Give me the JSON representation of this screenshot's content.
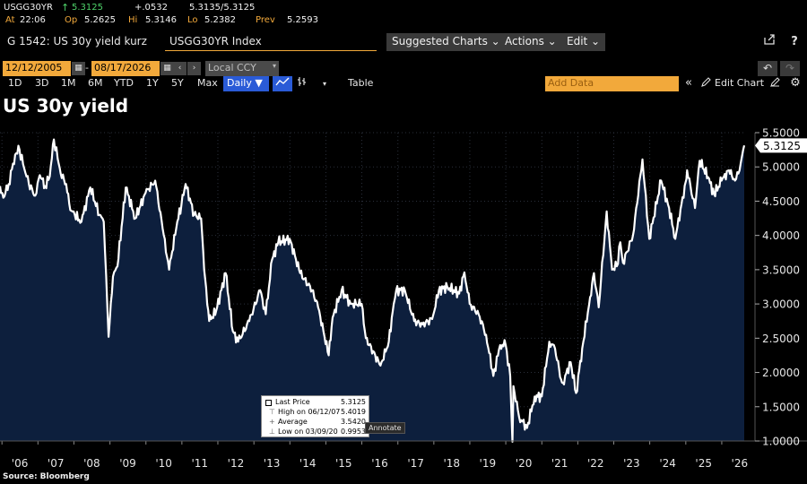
{
  "quote": {
    "ticker": "USGG30YR",
    "arrow": "↑",
    "last": "5.3125",
    "change": "+.0532",
    "bid_ask": "5.3135/5.3125",
    "at_label": "At",
    "at_time": "22:06",
    "op_label": "Op",
    "op_value": "5.2625",
    "hi_label": "Hi",
    "hi_value": "5.3146",
    "lo_label": "Lo",
    "lo_value": "5.2382",
    "prev_label": "Prev",
    "prev_value": "5.2593"
  },
  "titlebar": {
    "title": "G 1542: US 30y yield kurz",
    "security": "USGG30YR Index",
    "suggested": "Suggested Charts ⌄",
    "actions": "Actions ⌄",
    "edit": "Edit ⌄",
    "share_icon": "share-icon",
    "help_icon": "help-icon"
  },
  "daterow": {
    "start": "12/12/2005",
    "end": "08/17/2026",
    "ccy": "Local CCY",
    "calendar_icon": "calendar-icon"
  },
  "periods": [
    "1D",
    "3D",
    "1M",
    "6M",
    "YTD",
    "1Y",
    "5Y",
    "Max"
  ],
  "toolbar": {
    "frequency": "Daily ▼",
    "table": "Table",
    "add_data": "Add Data",
    "edit_chart": "Edit Chart"
  },
  "colors": {
    "background": "#000000",
    "area_fill": "#0d1f3d",
    "line": "#ffffff",
    "amber": "#f2a93b",
    "active_blue": "#2a5bd7"
  },
  "chart_data": {
    "type": "area",
    "title": "US 30y yield",
    "source": "Source: Bloomberg",
    "x_labels": [
      "'06",
      "'07",
      "'08",
      "'09",
      "'10",
      "'11",
      "'12",
      "'13",
      "'14",
      "'15",
      "'16",
      "'17",
      "'18",
      "'19",
      "'20",
      "'21",
      "'22",
      "'23",
      "'24",
      "'25",
      "'26"
    ],
    "y_ticks": [
      "1.0000",
      "1.5000",
      "2.0000",
      "2.5000",
      "3.0000",
      "3.5000",
      "4.0000",
      "4.5000",
      "5.0000",
      "5.5000"
    ],
    "ylim": [
      1.0,
      5.5
    ],
    "x_range": [
      "2005-12-12",
      "2026-08-17"
    ],
    "grid": true,
    "last_value_label": "5.3125",
    "series": [
      {
        "values": [
          [
            "2005-12-12",
            4.72
          ],
          [
            "2006-01-15",
            4.55
          ],
          [
            "2006-03-10",
            4.75
          ],
          [
            "2006-05-15",
            5.18
          ],
          [
            "2006-06-28",
            5.25
          ],
          [
            "2006-08-15",
            4.98
          ],
          [
            "2006-10-01",
            4.75
          ],
          [
            "2006-12-05",
            4.58
          ],
          [
            "2007-01-20",
            4.88
          ],
          [
            "2007-03-15",
            4.72
          ],
          [
            "2007-05-01",
            4.86
          ],
          [
            "2007-06-12",
            5.4
          ],
          [
            "2007-07-20",
            5.12
          ],
          [
            "2007-08-20",
            4.9
          ],
          [
            "2007-10-15",
            4.75
          ],
          [
            "2007-11-25",
            4.37
          ],
          [
            "2008-01-10",
            4.3
          ],
          [
            "2008-03-17",
            4.2
          ],
          [
            "2008-06-15",
            4.7
          ],
          [
            "2008-09-15",
            4.3
          ],
          [
            "2008-10-30",
            4.2
          ],
          [
            "2008-12-18",
            2.52
          ],
          [
            "2009-02-01",
            3.4
          ],
          [
            "2009-03-18",
            3.55
          ],
          [
            "2009-06-10",
            4.7
          ],
          [
            "2009-09-15",
            4.25
          ],
          [
            "2009-12-28",
            4.62
          ],
          [
            "2010-04-05",
            4.8
          ],
          [
            "2010-06-20",
            4.1
          ],
          [
            "2010-08-24",
            3.5
          ],
          [
            "2010-11-15",
            4.2
          ],
          [
            "2010-12-28",
            4.45
          ],
          [
            "2011-02-08",
            4.75
          ],
          [
            "2011-05-05",
            4.3
          ],
          [
            "2011-07-15",
            4.25
          ],
          [
            "2011-08-15",
            3.5
          ],
          [
            "2011-10-05",
            2.75
          ],
          [
            "2011-12-15",
            2.9
          ],
          [
            "2012-03-20",
            3.45
          ],
          [
            "2012-06-01",
            2.6
          ],
          [
            "2012-07-25",
            2.45
          ],
          [
            "2012-11-15",
            2.75
          ],
          [
            "2013-03-05",
            3.2
          ],
          [
            "2013-05-01",
            2.85
          ],
          [
            "2013-07-05",
            3.65
          ],
          [
            "2013-09-05",
            3.9
          ],
          [
            "2013-12-30",
            3.95
          ],
          [
            "2014-04-15",
            3.45
          ],
          [
            "2014-08-15",
            3.2
          ],
          [
            "2014-10-15",
            2.95
          ],
          [
            "2015-01-30",
            2.25
          ],
          [
            "2015-03-10",
            2.8
          ],
          [
            "2015-06-10",
            3.2
          ],
          [
            "2015-09-10",
            3.0
          ],
          [
            "2015-12-30",
            3.0
          ],
          [
            "2016-02-11",
            2.5
          ],
          [
            "2016-07-08",
            2.1
          ],
          [
            "2016-10-01",
            2.45
          ],
          [
            "2016-11-20",
            3.0
          ],
          [
            "2016-12-15",
            3.2
          ],
          [
            "2017-03-13",
            3.2
          ],
          [
            "2017-06-15",
            2.75
          ],
          [
            "2017-09-07",
            2.7
          ],
          [
            "2017-12-15",
            2.78
          ],
          [
            "2018-02-21",
            3.2
          ],
          [
            "2018-05-17",
            3.25
          ],
          [
            "2018-09-15",
            3.15
          ],
          [
            "2018-11-07",
            3.46
          ],
          [
            "2018-12-31",
            3.0
          ],
          [
            "2019-04-01",
            2.85
          ],
          [
            "2019-06-15",
            2.55
          ],
          [
            "2019-08-28",
            1.95
          ],
          [
            "2019-11-05",
            2.4
          ],
          [
            "2019-12-31",
            2.4
          ],
          [
            "2020-02-15",
            1.95
          ],
          [
            "2020-03-09",
            0.99
          ],
          [
            "2020-03-19",
            1.8
          ],
          [
            "2020-05-15",
            1.35
          ],
          [
            "2020-08-04",
            1.19
          ],
          [
            "2020-10-20",
            1.65
          ],
          [
            "2020-12-31",
            1.65
          ],
          [
            "2021-03-18",
            2.45
          ],
          [
            "2021-05-15",
            2.35
          ],
          [
            "2021-07-15",
            1.9
          ],
          [
            "2021-08-03",
            1.85
          ],
          [
            "2021-10-20",
            2.15
          ],
          [
            "2021-12-15",
            1.7
          ],
          [
            "2022-02-15",
            2.35
          ],
          [
            "2022-05-06",
            3.1
          ],
          [
            "2022-06-14",
            3.45
          ],
          [
            "2022-08-01",
            2.95
          ],
          [
            "2022-10-21",
            4.35
          ],
          [
            "2022-12-15",
            3.5
          ],
          [
            "2023-02-01",
            3.55
          ],
          [
            "2023-03-08",
            3.9
          ],
          [
            "2023-04-05",
            3.6
          ],
          [
            "2023-07-15",
            4.0
          ],
          [
            "2023-10-19",
            5.11
          ],
          [
            "2023-12-27",
            3.95
          ],
          [
            "2024-04-25",
            4.8
          ],
          [
            "2024-07-15",
            4.4
          ],
          [
            "2024-09-16",
            3.95
          ],
          [
            "2024-12-31",
            4.78
          ],
          [
            "2025-01-14",
            4.95
          ],
          [
            "2025-04-04",
            4.4
          ],
          [
            "2025-05-22",
            5.09
          ],
          [
            "2025-08-15",
            4.85
          ],
          [
            "2025-10-15",
            4.6
          ],
          [
            "2025-12-31",
            4.8
          ],
          [
            "2026-03-15",
            4.95
          ],
          [
            "2026-05-15",
            4.8
          ],
          [
            "2026-07-01",
            4.95
          ],
          [
            "2026-08-17",
            5.3125
          ]
        ]
      }
    ]
  },
  "legend": {
    "last_price_label": "Last Price",
    "last_price_value": "5.3125",
    "high_label": "High on 06/12/07",
    "high_value": "5.4019",
    "average_label": "Average",
    "average_value": "3.5420",
    "low_label": "Low on 03/09/20",
    "low_value": "0.9953",
    "annotate": "Annotate"
  }
}
